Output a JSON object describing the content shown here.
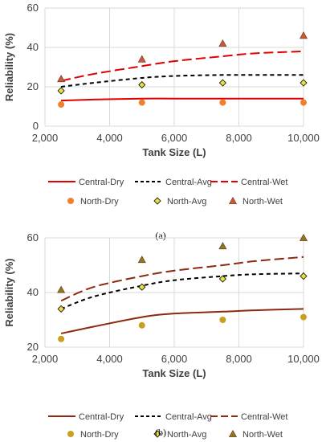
{
  "figure": {
    "panels": [
      {
        "label": "(a)",
        "chart_data": {
          "type": "line",
          "title": "",
          "xlabel": "Tank Size (L)",
          "ylabel": "Reliability (%)",
          "xlim": [
            2000,
            10000
          ],
          "ylim": [
            0,
            60
          ],
          "xticks": [
            2000,
            4000,
            6000,
            8000,
            10000
          ],
          "xtick_labels": [
            "2,000",
            "4,000",
            "6,000",
            "8,000",
            "10,000"
          ],
          "yticks": [
            0,
            20,
            40,
            60
          ],
          "ytick_labels": [
            "0",
            "20",
            "40",
            "60"
          ],
          "grid": "vertical-and-horizontal",
          "legend": "below",
          "lines": [
            {
              "name": "Central-Dry",
              "color": "#e00000",
              "dash": "solid",
              "x": [
                2500,
                3500,
                5000,
                6000,
                7500,
                8500,
                10000
              ],
              "y": [
                13,
                13.5,
                14,
                14,
                14,
                14,
                14
              ]
            },
            {
              "name": "Central-Avg",
              "color": "#000000",
              "dash": "dashed",
              "x": [
                2500,
                3500,
                5000,
                6000,
                7500,
                8500,
                10000
              ],
              "y": [
                20,
                22,
                24.5,
                25.5,
                26,
                26,
                26
              ]
            },
            {
              "name": "Central-Wet",
              "color": "#e00000",
              "dash": "longdash",
              "x": [
                2500,
                3500,
                5000,
                6000,
                7500,
                8500,
                10000
              ],
              "y": [
                23,
                26.5,
                30.5,
                33,
                35.5,
                37,
                38
              ]
            }
          ],
          "points": [
            {
              "name": "North-Dry",
              "marker": "circle",
              "color": "#f08030",
              "x": [
                2500,
                5000,
                7500,
                10000
              ],
              "y": [
                11,
                12,
                12,
                12
              ]
            },
            {
              "name": "North-Avg",
              "marker": "diamond",
              "color": "#e8e040",
              "x": [
                2500,
                5000,
                7500,
                10000
              ],
              "y": [
                18,
                21,
                22,
                22
              ]
            },
            {
              "name": "North-Wet",
              "marker": "triangle",
              "color": "#c85a3a",
              "x": [
                2500,
                5000,
                7500,
                10000
              ],
              "y": [
                24,
                34,
                42,
                46
              ]
            }
          ]
        }
      },
      {
        "label": "(b)",
        "chart_data": {
          "type": "line",
          "title": "",
          "xlabel": "Tank Size (L)",
          "ylabel": "Reliability (%)",
          "xlim": [
            2000,
            10000
          ],
          "ylim": [
            20,
            60
          ],
          "xticks": [
            2000,
            4000,
            6000,
            8000,
            10000
          ],
          "xtick_labels": [
            "2,000",
            "4,000",
            "6,000",
            "8,000",
            "10,000"
          ],
          "yticks": [
            20,
            40,
            60
          ],
          "ytick_labels": [
            "20",
            "40",
            "60"
          ],
          "grid": "vertical-and-horizontal",
          "legend": "below",
          "lines": [
            {
              "name": "Central-Dry",
              "color": "#8b2a10",
              "dash": "solid",
              "x": [
                2500,
                3500,
                5000,
                6000,
                7500,
                8500,
                10000
              ],
              "y": [
                25,
                27.5,
                31,
                32.3,
                33,
                33.5,
                34
              ]
            },
            {
              "name": "Central-Avg",
              "color": "#000000",
              "dash": "dashed",
              "x": [
                2500,
                3500,
                5000,
                6000,
                7500,
                8500,
                10000
              ],
              "y": [
                34,
                38.5,
                42.5,
                44.5,
                46,
                46.7,
                47
              ]
            },
            {
              "name": "Central-Wet",
              "color": "#8b2a10",
              "dash": "longdash",
              "x": [
                2500,
                3500,
                5000,
                6000,
                7500,
                8500,
                10000
              ],
              "y": [
                37,
                42,
                46,
                48,
                50,
                51.5,
                53
              ]
            }
          ],
          "points": [
            {
              "name": "North-Dry",
              "marker": "circle",
              "color": "#c8a020",
              "x": [
                2500,
                5000,
                7500,
                10000
              ],
              "y": [
                23,
                28,
                30,
                31
              ]
            },
            {
              "name": "North-Avg",
              "marker": "diamond",
              "color": "#e8e040",
              "x": [
                2500,
                5000,
                7500,
                10000
              ],
              "y": [
                34,
                42,
                45,
                46
              ]
            },
            {
              "name": "North-Wet",
              "marker": "triangle",
              "color": "#8b7a20",
              "x": [
                2500,
                5000,
                7500,
                10000
              ],
              "y": [
                41,
                52,
                57,
                60
              ]
            }
          ]
        }
      }
    ]
  }
}
